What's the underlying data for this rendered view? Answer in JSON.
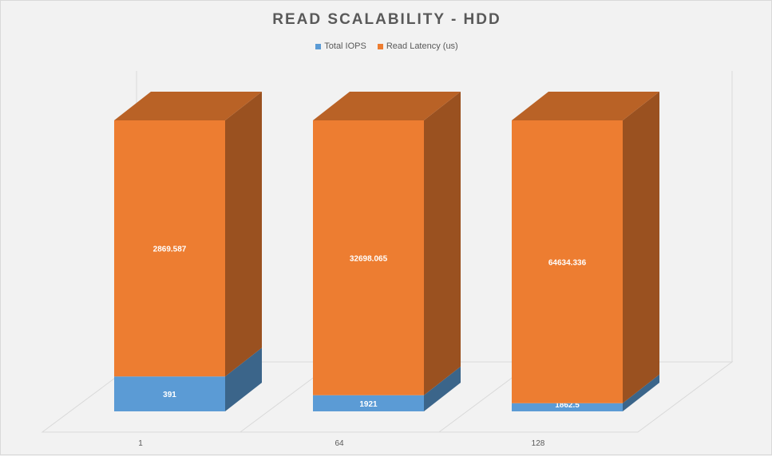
{
  "chart_data": {
    "type": "bar",
    "stacked": true,
    "style": "3d-column",
    "title": "READ SCALABILITY - HDD",
    "categories": [
      "1",
      "64",
      "128"
    ],
    "series": [
      {
        "name": "Total IOPS",
        "color": "#5b9bd5",
        "values": [
          391,
          1921,
          1862.5
        ],
        "labels": [
          "391",
          "1921",
          "1862.5"
        ]
      },
      {
        "name": "Read Latency (us)",
        "color": "#ed7d31",
        "values": [
          2869.587,
          32698.065,
          64634.336
        ],
        "labels": [
          "2869.587",
          "32698.065",
          "64634.336"
        ]
      }
    ],
    "legend": "top",
    "grid": false
  }
}
